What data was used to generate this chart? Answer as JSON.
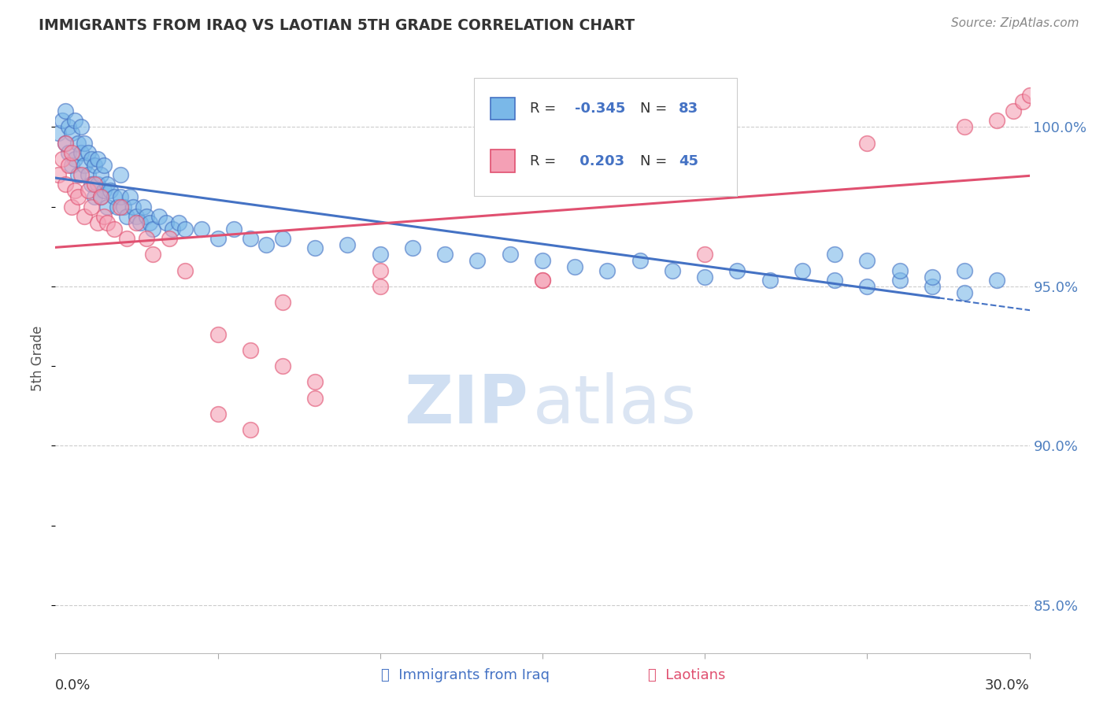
{
  "title": "IMMIGRANTS FROM IRAQ VS LAOTIAN 5TH GRADE CORRELATION CHART",
  "source": "Source: ZipAtlas.com",
  "ylabel": "5th Grade",
  "y_ticks": [
    85.0,
    90.0,
    95.0,
    100.0
  ],
  "y_tick_labels": [
    "85.0%",
    "90.0%",
    "95.0%",
    "100.0%"
  ],
  "xlim": [
    0.0,
    0.3
  ],
  "ylim": [
    83.5,
    102.0
  ],
  "color_iraq": "#7ab8e8",
  "color_laotian": "#f4a0b5",
  "color_iraq_line": "#4472c4",
  "color_laotian_line": "#e05070",
  "watermark_ZIP": "ZIP",
  "watermark_atlas": "atlas",
  "iraq_x": [
    0.001,
    0.002,
    0.003,
    0.003,
    0.004,
    0.004,
    0.005,
    0.005,
    0.006,
    0.006,
    0.007,
    0.007,
    0.008,
    0.008,
    0.009,
    0.009,
    0.01,
    0.01,
    0.011,
    0.011,
    0.012,
    0.012,
    0.013,
    0.013,
    0.014,
    0.014,
    0.015,
    0.015,
    0.016,
    0.016,
    0.017,
    0.018,
    0.019,
    0.02,
    0.02,
    0.021,
    0.022,
    0.023,
    0.024,
    0.025,
    0.026,
    0.027,
    0.028,
    0.029,
    0.03,
    0.032,
    0.034,
    0.036,
    0.038,
    0.04,
    0.045,
    0.05,
    0.055,
    0.06,
    0.065,
    0.07,
    0.08,
    0.09,
    0.1,
    0.11,
    0.12,
    0.13,
    0.14,
    0.15,
    0.16,
    0.17,
    0.18,
    0.19,
    0.2,
    0.21,
    0.22,
    0.23,
    0.24,
    0.25,
    0.26,
    0.27,
    0.28,
    0.24,
    0.26,
    0.28,
    0.29,
    0.25,
    0.27
  ],
  "iraq_y": [
    99.8,
    100.2,
    99.5,
    100.5,
    99.2,
    100.0,
    98.8,
    99.8,
    99.0,
    100.2,
    98.5,
    99.5,
    99.2,
    100.0,
    98.8,
    99.5,
    98.5,
    99.2,
    98.2,
    99.0,
    97.8,
    98.8,
    98.2,
    99.0,
    97.8,
    98.5,
    98.0,
    98.8,
    97.5,
    98.2,
    98.0,
    97.8,
    97.5,
    97.8,
    98.5,
    97.5,
    97.2,
    97.8,
    97.5,
    97.2,
    97.0,
    97.5,
    97.2,
    97.0,
    96.8,
    97.2,
    97.0,
    96.8,
    97.0,
    96.8,
    96.8,
    96.5,
    96.8,
    96.5,
    96.3,
    96.5,
    96.2,
    96.3,
    96.0,
    96.2,
    96.0,
    95.8,
    96.0,
    95.8,
    95.6,
    95.5,
    95.8,
    95.5,
    95.3,
    95.5,
    95.2,
    95.5,
    95.2,
    95.0,
    95.2,
    95.0,
    94.8,
    96.0,
    95.5,
    95.5,
    95.2,
    95.8,
    95.3
  ],
  "laotian_x": [
    0.001,
    0.002,
    0.003,
    0.003,
    0.004,
    0.005,
    0.005,
    0.006,
    0.007,
    0.008,
    0.009,
    0.01,
    0.011,
    0.012,
    0.013,
    0.014,
    0.015,
    0.016,
    0.018,
    0.02,
    0.022,
    0.025,
    0.028,
    0.03,
    0.035,
    0.04,
    0.05,
    0.06,
    0.07,
    0.08,
    0.05,
    0.06,
    0.1,
    0.15,
    0.07,
    0.08,
    0.1,
    0.15,
    0.2,
    0.25,
    0.28,
    0.29,
    0.295,
    0.298,
    0.3
  ],
  "laotian_y": [
    98.5,
    99.0,
    98.2,
    99.5,
    98.8,
    97.5,
    99.2,
    98.0,
    97.8,
    98.5,
    97.2,
    98.0,
    97.5,
    98.2,
    97.0,
    97.8,
    97.2,
    97.0,
    96.8,
    97.5,
    96.5,
    97.0,
    96.5,
    96.0,
    96.5,
    95.5,
    93.5,
    93.0,
    92.5,
    91.5,
    91.0,
    90.5,
    95.0,
    95.2,
    94.5,
    92.0,
    95.5,
    95.2,
    96.0,
    99.5,
    100.0,
    100.2,
    100.5,
    100.8,
    101.0
  ]
}
